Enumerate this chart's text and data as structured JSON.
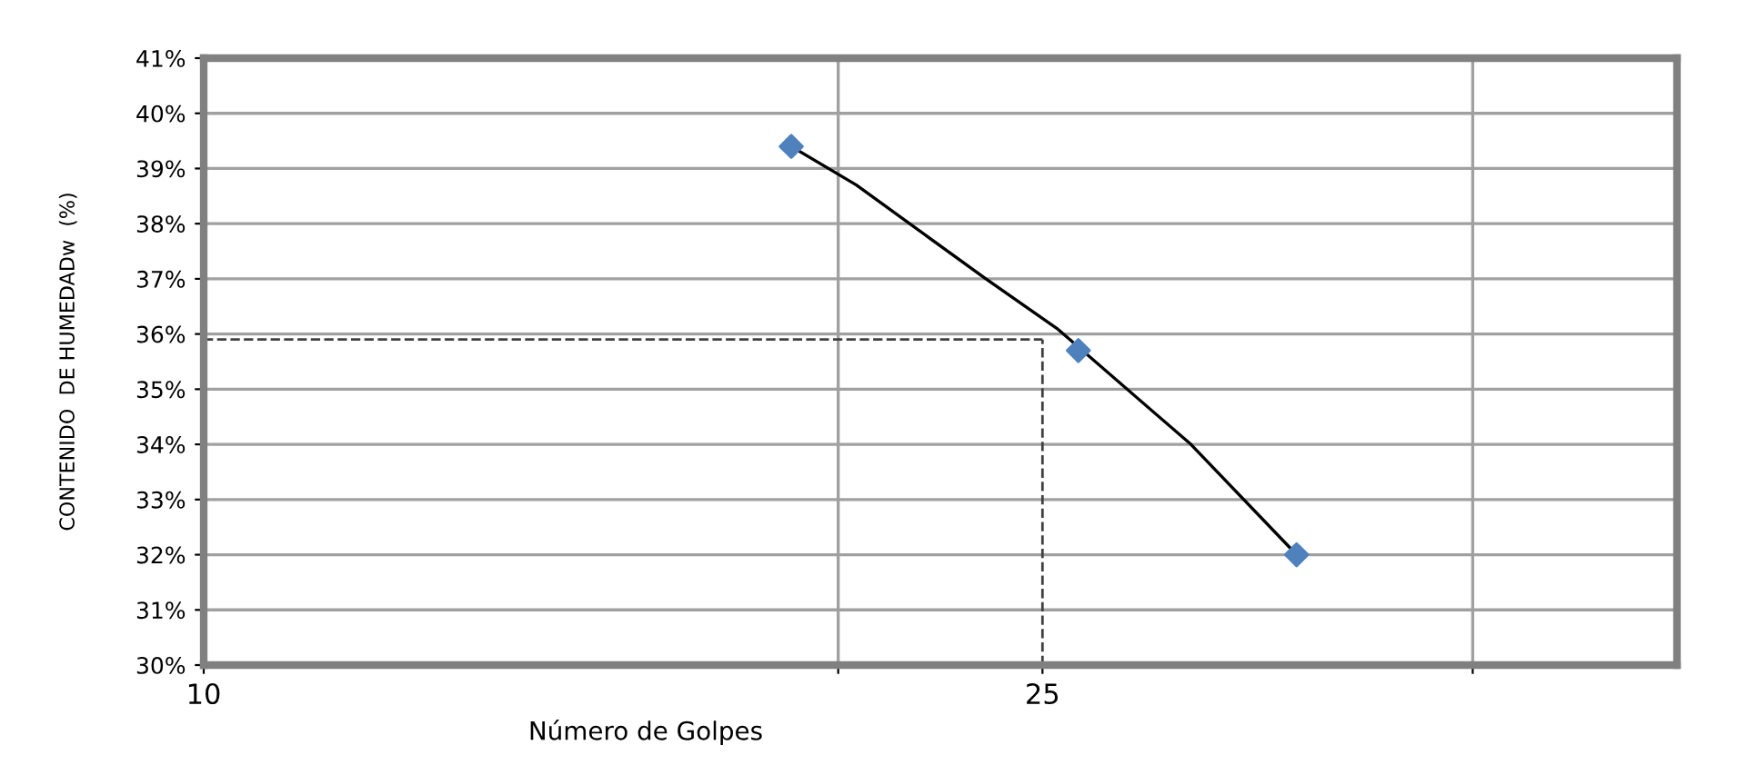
{
  "chart_data": {
    "type": "scatter",
    "xlabel": "Número de Golpes",
    "ylabel": "CONTENIDO  DE HUMEDADw  (%)",
    "log": "x",
    "grid": true,
    "legend": false,
    "xlim": [
      10,
      50
    ],
    "xticks": [
      10,
      {
        "value": 20,
        "label": null
      },
      25,
      {
        "value": 40,
        "label": null
      }
    ],
    "ylim": [
      30,
      41
    ],
    "yticks": [
      {
        "value": 30,
        "label": "30%"
      },
      {
        "value": 31,
        "label": "31%"
      },
      {
        "value": 32,
        "label": "32%"
      },
      {
        "value": 33,
        "label": "33%"
      },
      {
        "value": 34,
        "label": "34%"
      },
      {
        "value": 35,
        "label": "35%"
      },
      {
        "value": 36,
        "label": "36%"
      },
      {
        "value": 37,
        "label": "37%"
      },
      {
        "value": 38,
        "label": "38%"
      },
      {
        "value": 39,
        "label": "39%"
      },
      {
        "value": 40,
        "label": "40%"
      },
      {
        "value": 41,
        "label": "41%"
      }
    ],
    "series": [
      {
        "color": "#4f81bd",
        "marker": "diamond",
        "x": [
          19,
          26,
          33
        ],
        "values": [
          39.4,
          35.7,
          32.0
        ]
      },
      {
        "type": "line",
        "color": "#000000",
        "marker": "none",
        "line_style": "solid",
        "x": [
          19,
          20.4,
          23.5,
          25.4,
          29.4,
          33
        ],
        "values": [
          39.4,
          38.7,
          37.0,
          36.1,
          34.0,
          32.0
        ]
      }
    ],
    "ref_lines": [
      {
        "axis": "x",
        "value": 25,
        "label": null,
        "line_style": "dashed",
        "color": "#404040"
      },
      {
        "axis": "y",
        "value": 35.9,
        "label": null,
        "line_style": "dashed",
        "color": "#404040"
      }
    ]
  }
}
